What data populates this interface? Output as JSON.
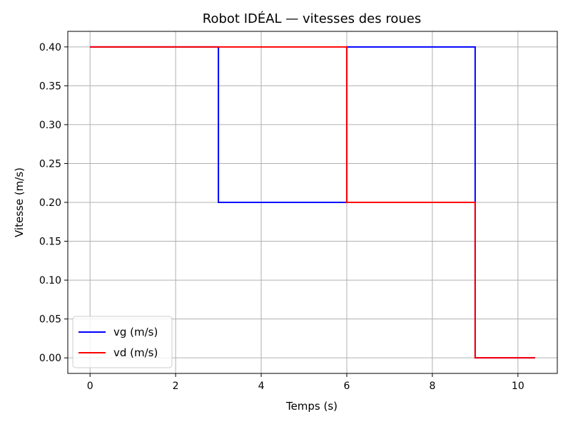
{
  "chart_data": {
    "type": "line",
    "title": "Robot IDÉAL — vitesses des roues",
    "xlabel": "Temps (s)",
    "ylabel": "Vitesse (m/s)",
    "xlim": [
      -0.52,
      10.92
    ],
    "ylim": [
      -0.02,
      0.42
    ],
    "xticks": [
      0,
      2,
      4,
      6,
      8,
      10
    ],
    "xtick_labels": [
      "0",
      "2",
      "4",
      "6",
      "8",
      "10"
    ],
    "yticks": [
      0.0,
      0.05,
      0.1,
      0.15,
      0.2,
      0.25,
      0.3,
      0.35,
      0.4
    ],
    "ytick_labels": [
      "0.00",
      "0.05",
      "0.10",
      "0.15",
      "0.20",
      "0.25",
      "0.30",
      "0.35",
      "0.40"
    ],
    "grid": true,
    "legend_position": "lower-left",
    "series": [
      {
        "name": "vg (m/s)",
        "color": "#0000ff",
        "x": [
          0,
          3,
          3,
          6,
          6,
          9,
          9,
          10.4
        ],
        "y": [
          0.4,
          0.4,
          0.2,
          0.2,
          0.4,
          0.4,
          0.0,
          0.0
        ]
      },
      {
        "name": "vd (m/s)",
        "color": "#ff0000",
        "x": [
          0,
          6,
          6,
          9,
          9,
          10.4
        ],
        "y": [
          0.4,
          0.4,
          0.2,
          0.2,
          0.0,
          0.0
        ]
      }
    ]
  }
}
